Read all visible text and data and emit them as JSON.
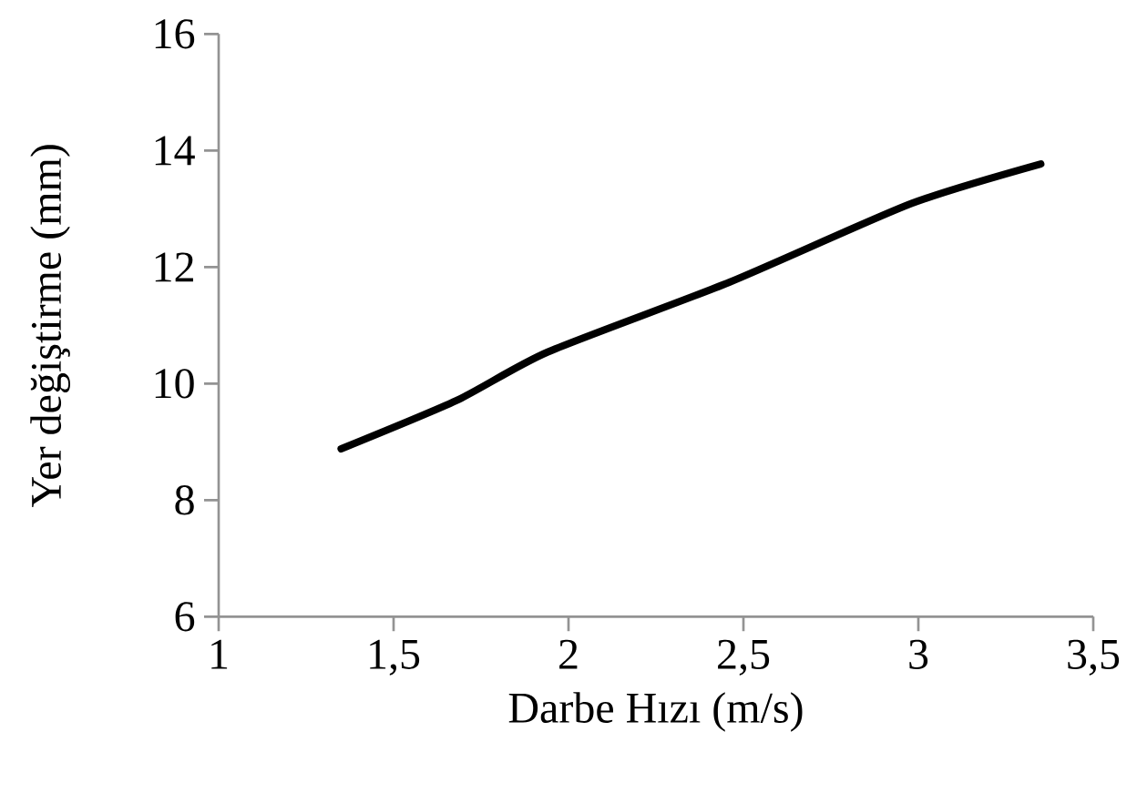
{
  "chart_data": {
    "type": "line",
    "xlabel": "Darbe Hızı (m/s)",
    "ylabel": "Yer değiştirme (mm)",
    "x": [
      1.35,
      1.68,
      1.94,
      2.46,
      2.98,
      3.35
    ],
    "series": [
      {
        "color": "#000000",
        "values": [
          8.88,
          9.71,
          10.54,
          11.74,
          13.09,
          13.77
        ]
      }
    ],
    "xlim": [
      1,
      3.5
    ],
    "ylim": [
      6,
      16
    ],
    "xticks": [
      1,
      {
        "value": 1.5,
        "label": "1,5"
      },
      2,
      {
        "value": 2.5,
        "label": "2,5"
      },
      3,
      {
        "value": 3.5,
        "label": "3,5"
      }
    ],
    "yticks": [
      6,
      8,
      10,
      12,
      14,
      16
    ],
    "grid": false,
    "marker": "none",
    "line_style": "solid"
  }
}
